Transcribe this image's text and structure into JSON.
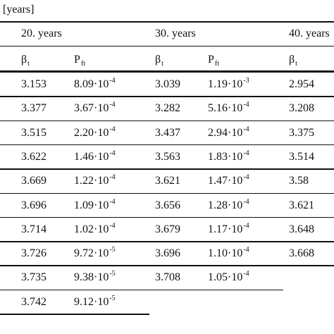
{
  "caption": "[years]",
  "groups": [
    "20. years",
    "30. years",
    "40. years"
  ],
  "subheaders": [
    {
      "symbol": "β",
      "sub": "t"
    },
    {
      "symbol": "P",
      "sub": "ft"
    },
    {
      "symbol": "β",
      "sub": "t"
    },
    {
      "symbol": "P",
      "sub": "ft"
    },
    {
      "symbol": "β",
      "sub": "t"
    }
  ],
  "rows": [
    [
      "3.153",
      {
        "base": "8.09·10",
        "exp": "-4"
      },
      "3.039",
      {
        "base": "1.19·10",
        "exp": "-3"
      },
      "2.954"
    ],
    [
      "3.377",
      {
        "base": "3.67·10",
        "exp": "-4"
      },
      "3.282",
      {
        "base": "5.16·10",
        "exp": "-4"
      },
      "3.208"
    ],
    [
      "3.515",
      {
        "base": "2.20·10",
        "exp": "-4"
      },
      "3.437",
      {
        "base": "2.94·10",
        "exp": "-4"
      },
      "3.375"
    ],
    [
      "3.622",
      {
        "base": "1.46·10",
        "exp": "-4"
      },
      "3.563",
      {
        "base": "1.83·10",
        "exp": "-4"
      },
      "3.514"
    ],
    [
      "3.669",
      {
        "base": "1.22·10",
        "exp": "-4"
      },
      "3.621",
      {
        "base": "1.47·10",
        "exp": "-4"
      },
      "3.58"
    ],
    [
      "3.696",
      {
        "base": "1.09·10",
        "exp": "-4"
      },
      "3.656",
      {
        "base": "1.28·10",
        "exp": "-4"
      },
      "3.621"
    ],
    [
      "3.714",
      {
        "base": "1.02·10",
        "exp": "-4"
      },
      "3.679",
      {
        "base": "1.17·10",
        "exp": "-4"
      },
      "3.648"
    ],
    [
      "3.726",
      {
        "base": "9.72·10",
        "exp": "-5"
      },
      "3.696",
      {
        "base": "1.10·10",
        "exp": "-4"
      },
      "3.668"
    ],
    [
      "3.735",
      {
        "base": "9.38·10",
        "exp": "-5"
      },
      "3.708",
      {
        "base": "1.05·10",
        "exp": "-4"
      }
    ],
    [
      "3.742",
      {
        "base": "9.12·10",
        "exp": "-5"
      }
    ]
  ]
}
